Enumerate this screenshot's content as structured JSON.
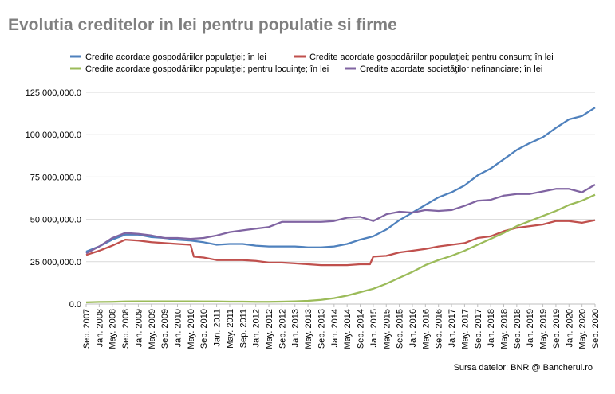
{
  "title": "Evolutia creditelor in lei pentru populatie si firme",
  "source": "Sursa datelor: BNR @ Bancherul.ro",
  "chart_data": {
    "type": "line",
    "title": "Evolutia creditelor in lei pentru populatie si firme",
    "xlabel": "",
    "ylabel": "",
    "ylim": [
      0,
      125000000
    ],
    "yticks": [
      0,
      25000000,
      50000000,
      75000000,
      100000000,
      125000000
    ],
    "ytick_labels": [
      "0.0",
      "25,000,000.0",
      "50,000,000.0",
      "75,000,000.0",
      "100,000,000.0",
      "125,000,000.0"
    ],
    "grid": "horizontal",
    "legend_position": "top",
    "x_start": "Sep. 2007",
    "x_end": "Sep. 2020",
    "x_tick_labels": [
      "Sep. 2007",
      "Jan. 2008",
      "May. 2008",
      "Sep. 2008",
      "Jan. 2009",
      "May. 2009",
      "Sep. 2009",
      "Jan. 2010",
      "May. 2010",
      "Sep. 2010",
      "Jan. 2011",
      "May. 2011",
      "Sep. 2011",
      "Jan. 2012",
      "May. 2012",
      "Sep. 2012",
      "Jan. 2013",
      "May. 2013",
      "Sep. 2013",
      "Jan. 2014",
      "May. 2014",
      "Sep. 2014",
      "Jan. 2015",
      "May. 2015",
      "Sep. 2015",
      "Jan. 2016",
      "May. 2016",
      "Sep. 2016",
      "Jan. 2017",
      "May. 2017",
      "Sep. 2017",
      "Jan. 2018",
      "May. 2018",
      "Sep. 2018",
      "Jan. 2019",
      "May. 2019",
      "Sep. 2019",
      "Jan. 2020",
      "May. 2020",
      "Sep. 2020"
    ],
    "series": [
      {
        "name": "Credite acordate gospodăriilor populaţiei; în lei",
        "color": "#4f81bd",
        "points": [
          [
            "Sep. 2007",
            31000000
          ],
          [
            "Jan. 2008",
            34000000
          ],
          [
            "May. 2008",
            38000000
          ],
          [
            "Sep. 2008",
            41000000
          ],
          [
            "Jan. 2009",
            41000000
          ],
          [
            "May. 2009",
            39500000
          ],
          [
            "Sep. 2009",
            39000000
          ],
          [
            "Jan. 2010",
            38000000
          ],
          [
            "May. 2010",
            37500000
          ],
          [
            "Sep. 2010",
            36500000
          ],
          [
            "Jan. 2011",
            35000000
          ],
          [
            "May. 2011",
            35500000
          ],
          [
            "Sep. 2011",
            35500000
          ],
          [
            "Jan. 2012",
            34500000
          ],
          [
            "May. 2012",
            34000000
          ],
          [
            "Sep. 2012",
            34000000
          ],
          [
            "Jan. 2013",
            34000000
          ],
          [
            "May. 2013",
            33500000
          ],
          [
            "Sep. 2013",
            33500000
          ],
          [
            "Jan. 2014",
            34000000
          ],
          [
            "May. 2014",
            35500000
          ],
          [
            "Sep. 2014",
            38000000
          ],
          [
            "Jan. 2015",
            40000000
          ],
          [
            "May. 2015",
            44000000
          ],
          [
            "Sep. 2015",
            49500000
          ],
          [
            "Jan. 2016",
            54000000
          ],
          [
            "May. 2016",
            58500000
          ],
          [
            "Sep. 2016",
            63000000
          ],
          [
            "Jan. 2017",
            66000000
          ],
          [
            "May. 2017",
            70000000
          ],
          [
            "Sep. 2017",
            76000000
          ],
          [
            "Jan. 2018",
            80000000
          ],
          [
            "May. 2018",
            85500000
          ],
          [
            "Sep. 2018",
            91000000
          ],
          [
            "Jan. 2019",
            95000000
          ],
          [
            "May. 2019",
            98500000
          ],
          [
            "Sep. 2019",
            104000000
          ],
          [
            "Jan. 2020",
            109000000
          ],
          [
            "May. 2020",
            111000000
          ],
          [
            "Sep. 2020",
            116000000
          ]
        ]
      },
      {
        "name": "Credite acordate gospodăriilor populaţiei; pentru consum; în lei",
        "color": "#c0504d",
        "points": [
          [
            "Sep. 2007",
            29000000
          ],
          [
            "Jan. 2008",
            31500000
          ],
          [
            "May. 2008",
            34500000
          ],
          [
            "Sep. 2008",
            38000000
          ],
          [
            "Jan. 2009",
            37500000
          ],
          [
            "May. 2009",
            36500000
          ],
          [
            "Sep. 2009",
            36000000
          ],
          [
            "Jan. 2010",
            35500000
          ],
          [
            "May. 2010",
            35000000
          ],
          [
            "Jun. 2010",
            28000000
          ],
          [
            "Sep. 2010",
            27500000
          ],
          [
            "Jan. 2011",
            26000000
          ],
          [
            "May. 2011",
            26000000
          ],
          [
            "Sep. 2011",
            26000000
          ],
          [
            "Jan. 2012",
            25500000
          ],
          [
            "May. 2012",
            24500000
          ],
          [
            "Sep. 2012",
            24500000
          ],
          [
            "Jan. 2013",
            24000000
          ],
          [
            "May. 2013",
            23500000
          ],
          [
            "Sep. 2013",
            23000000
          ],
          [
            "Jan. 2014",
            23000000
          ],
          [
            "May. 2014",
            23000000
          ],
          [
            "Sep. 2014",
            23500000
          ],
          [
            "Dec. 2014",
            23500000
          ],
          [
            "Jan. 2015",
            28000000
          ],
          [
            "May. 2015",
            28500000
          ],
          [
            "Sep. 2015",
            30500000
          ],
          [
            "Jan. 2016",
            31500000
          ],
          [
            "May. 2016",
            32500000
          ],
          [
            "Sep. 2016",
            34000000
          ],
          [
            "Jan. 2017",
            35000000
          ],
          [
            "May. 2017",
            36000000
          ],
          [
            "Sep. 2017",
            39000000
          ],
          [
            "Jan. 2018",
            40000000
          ],
          [
            "May. 2018",
            43000000
          ],
          [
            "Sep. 2018",
            45000000
          ],
          [
            "Jan. 2019",
            46000000
          ],
          [
            "May. 2019",
            47000000
          ],
          [
            "Sep. 2019",
            49000000
          ],
          [
            "Jan. 2020",
            49000000
          ],
          [
            "May. 2020",
            48000000
          ],
          [
            "Sep. 2020",
            49500000
          ]
        ]
      },
      {
        "name": "Credite acordate gospodăriilor populaţiei; pentru locuinţe; în lei",
        "color": "#9bbb59",
        "points": [
          [
            "Sep. 2007",
            1000000
          ],
          [
            "Jan. 2008",
            1200000
          ],
          [
            "May. 2008",
            1300000
          ],
          [
            "Sep. 2008",
            1500000
          ],
          [
            "Jan. 2009",
            1600000
          ],
          [
            "May. 2009",
            1600000
          ],
          [
            "Sep. 2009",
            1600000
          ],
          [
            "Jan. 2010",
            1600000
          ],
          [
            "May. 2010",
            1600000
          ],
          [
            "Sep. 2010",
            1500000
          ],
          [
            "Jan. 2011",
            1500000
          ],
          [
            "May. 2011",
            1400000
          ],
          [
            "Sep. 2011",
            1400000
          ],
          [
            "Jan. 2012",
            1300000
          ],
          [
            "May. 2012",
            1300000
          ],
          [
            "Sep. 2012",
            1400000
          ],
          [
            "Jan. 2013",
            1600000
          ],
          [
            "May. 2013",
            1900000
          ],
          [
            "Sep. 2013",
            2500000
          ],
          [
            "Jan. 2014",
            3500000
          ],
          [
            "May. 2014",
            5000000
          ],
          [
            "Sep. 2014",
            7000000
          ],
          [
            "Jan. 2015",
            9000000
          ],
          [
            "May. 2015",
            12000000
          ],
          [
            "Sep. 2015",
            15500000
          ],
          [
            "Jan. 2016",
            19000000
          ],
          [
            "May. 2016",
            23000000
          ],
          [
            "Sep. 2016",
            26000000
          ],
          [
            "Jan. 2017",
            28500000
          ],
          [
            "May. 2017",
            31500000
          ],
          [
            "Sep. 2017",
            35000000
          ],
          [
            "Jan. 2018",
            38500000
          ],
          [
            "May. 2018",
            42000000
          ],
          [
            "Sep. 2018",
            46000000
          ],
          [
            "Jan. 2019",
            49000000
          ],
          [
            "May. 2019",
            52000000
          ],
          [
            "Sep. 2019",
            55000000
          ],
          [
            "Jan. 2020",
            58500000
          ],
          [
            "May. 2020",
            61000000
          ],
          [
            "Sep. 2020",
            64500000
          ]
        ]
      },
      {
        "name": "Credite acordate societăţilor nefinanciare; în lei",
        "color": "#8064a2",
        "points": [
          [
            "Sep. 2007",
            30000000
          ],
          [
            "Jan. 2008",
            34000000
          ],
          [
            "May. 2008",
            39000000
          ],
          [
            "Sep. 2008",
            42000000
          ],
          [
            "Jan. 2009",
            41500000
          ],
          [
            "May. 2009",
            40500000
          ],
          [
            "Sep. 2009",
            39000000
          ],
          [
            "Jan. 2010",
            39000000
          ],
          [
            "May. 2010",
            38500000
          ],
          [
            "Sep. 2010",
            39000000
          ],
          [
            "Jan. 2011",
            40500000
          ],
          [
            "May. 2011",
            42500000
          ],
          [
            "Sep. 2011",
            43500000
          ],
          [
            "Jan. 2012",
            44500000
          ],
          [
            "May. 2012",
            45500000
          ],
          [
            "Sep. 2012",
            48500000
          ],
          [
            "Jan. 2013",
            48500000
          ],
          [
            "May. 2013",
            48500000
          ],
          [
            "Sep. 2013",
            48500000
          ],
          [
            "Jan. 2014",
            49000000
          ],
          [
            "May. 2014",
            51000000
          ],
          [
            "Sep. 2014",
            51500000
          ],
          [
            "Jan. 2015",
            49000000
          ],
          [
            "May. 2015",
            53000000
          ],
          [
            "Sep. 2015",
            54500000
          ],
          [
            "Jan. 2016",
            54000000
          ],
          [
            "May. 2016",
            55500000
          ],
          [
            "Sep. 2016",
            55000000
          ],
          [
            "Jan. 2017",
            55500000
          ],
          [
            "May. 2017",
            58000000
          ],
          [
            "Sep. 2017",
            61000000
          ],
          [
            "Jan. 2018",
            61500000
          ],
          [
            "May. 2018",
            64000000
          ],
          [
            "Sep. 2018",
            65000000
          ],
          [
            "Jan. 2019",
            65000000
          ],
          [
            "May. 2019",
            66500000
          ],
          [
            "Sep. 2019",
            68000000
          ],
          [
            "Jan. 2020",
            68000000
          ],
          [
            "May. 2020",
            66000000
          ],
          [
            "Sep. 2020",
            70500000
          ]
        ]
      }
    ]
  }
}
